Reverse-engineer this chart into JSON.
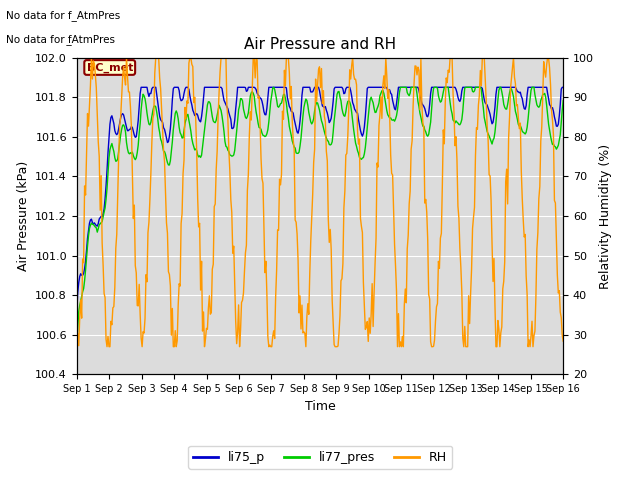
{
  "title": "Air Pressure and RH",
  "xlabel": "Time",
  "ylabel_left": "Air Pressure (kPa)",
  "ylabel_right": "Relativity Humidity (%)",
  "annotation_line1": "No data for f_AtmPres",
  "annotation_line2": "No data for f̲AtmPres",
  "bc_met_label": "BC_met",
  "ylim_left": [
    100.4,
    102.0
  ],
  "ylim_right": [
    20,
    100
  ],
  "xtick_labels": [
    "Sep 1",
    "Sep 2",
    "Sep 3",
    "Sep 4",
    "Sep 5",
    "Sep 6",
    "Sep 7",
    "Sep 8",
    "Sep 9",
    "Sep 10",
    "Sep 11",
    "Sep 12",
    "Sep 13",
    "Sep 14",
    "Sep 15",
    "Sep 16"
  ],
  "yticks_left": [
    100.4,
    100.6,
    100.8,
    101.0,
    101.2,
    101.4,
    101.6,
    101.8,
    102.0
  ],
  "yticks_right": [
    20,
    30,
    40,
    50,
    60,
    70,
    80,
    90,
    100
  ],
  "color_li75": "#0000cc",
  "color_li77": "#00cc00",
  "color_rh": "#ff9900",
  "legend_labels": [
    "li75_p",
    "li77_pres",
    "RH"
  ],
  "bg_color": "#dcdcdc"
}
